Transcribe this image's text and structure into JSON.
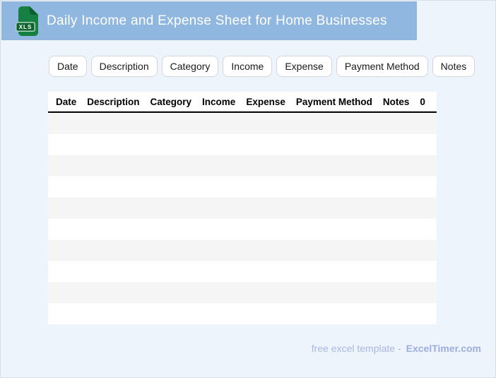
{
  "header": {
    "title": "Daily Income and Expense Sheet for Home Businesses",
    "file_icon_label": "XLS"
  },
  "toolbar": {
    "buttons": [
      "Date",
      "Description",
      "Category",
      "Income",
      "Expense",
      "Payment Method",
      "Notes"
    ]
  },
  "table": {
    "columns": [
      "Date",
      "Description",
      "Category",
      "Income",
      "Expense",
      "Payment Method",
      "Notes",
      "0"
    ],
    "row_count": 10,
    "rows_are_empty": true
  },
  "footer": {
    "text": "free excel template -",
    "brand": "ExcelTimer.com"
  },
  "colors": {
    "header_bg": "#90b7e0",
    "page_bg": "#eef4fc",
    "icon_green": "#158041",
    "icon_fold_green": "#0c5f2e",
    "icon_badge_green": "#10632f",
    "icon_badge_border": "#abd6bc",
    "stripe": "#f5f5f5",
    "header_border": "#000000",
    "footer_text": "#a9b7e4",
    "footer_brand": "#9dade0"
  }
}
